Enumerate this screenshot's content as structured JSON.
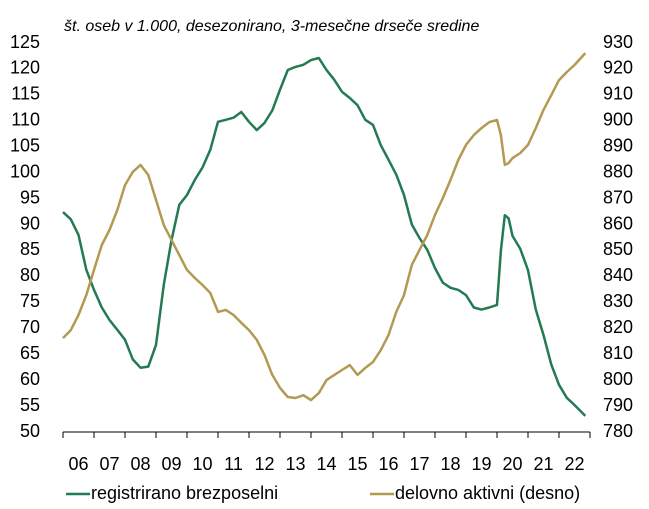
{
  "chart_data": {
    "type": "line",
    "title": "št. oseb v 1.000, desezonirano, 3-mesečne drseče sredine",
    "categories": [
      "06",
      "07",
      "08",
      "09",
      "10",
      "11",
      "12",
      "13",
      "14",
      "15",
      "16",
      "17",
      "18",
      "19",
      "20",
      "21",
      "22"
    ],
    "xlim": [
      2006,
      2023
    ],
    "x": [
      2006.0,
      2006.25,
      2006.5,
      2006.75,
      2007.0,
      2007.25,
      2007.5,
      2007.75,
      2008.0,
      2008.25,
      2008.5,
      2008.75,
      2009.0,
      2009.25,
      2009.5,
      2009.75,
      2010.0,
      2010.25,
      2010.5,
      2010.75,
      2011.0,
      2011.25,
      2011.5,
      2011.75,
      2012.0,
      2012.25,
      2012.5,
      2012.75,
      2013.0,
      2013.25,
      2013.5,
      2013.75,
      2014.0,
      2014.25,
      2014.5,
      2014.75,
      2015.0,
      2015.25,
      2015.5,
      2015.75,
      2016.0,
      2016.25,
      2016.5,
      2016.75,
      2017.0,
      2017.25,
      2017.5,
      2017.75,
      2018.0,
      2018.25,
      2018.5,
      2018.75,
      2019.0,
      2019.25,
      2019.5,
      2019.75,
      2020.0,
      2020.125,
      2020.25,
      2020.375,
      2020.5,
      2020.75,
      2021.0,
      2021.25,
      2021.5,
      2021.75,
      2022.0,
      2022.25,
      2022.5,
      2022.85
    ],
    "ylim": [
      50,
      125
    ],
    "yticks": [
      50,
      55,
      60,
      65,
      70,
      75,
      80,
      85,
      90,
      95,
      100,
      105,
      110,
      115,
      120,
      125
    ],
    "y2lim": [
      780,
      930
    ],
    "y2ticks": [
      780,
      790,
      800,
      810,
      820,
      830,
      840,
      850,
      860,
      870,
      880,
      890,
      900,
      910,
      920,
      930
    ],
    "legend": "bottom",
    "series": [
      {
        "name": "registrirano brezposelni",
        "color": "#237a53",
        "values": [
          92.4,
          91,
          88,
          81.3,
          77.4,
          74,
          71.6,
          69.7,
          67.8,
          64,
          62.4,
          62.6,
          66.8,
          78.4,
          87,
          93.8,
          95.7,
          98.6,
          101,
          104.4,
          109.8,
          110.2,
          110.6,
          111.7,
          109.8,
          108.2,
          109.6,
          112,
          116,
          119.8,
          120.4,
          120.8,
          121.7,
          122.1,
          119.8,
          117.9,
          115.6,
          114.4,
          113,
          110.2,
          109.2,
          105.3,
          102.5,
          99.6,
          95.7,
          90,
          87.4,
          85.1,
          81.6,
          78.8,
          77.8,
          77.4,
          76.4,
          74,
          73.6,
          74,
          74.5,
          85,
          91.8,
          91.2,
          87.8,
          85.3,
          81.2,
          73.6,
          68.7,
          63,
          59.1,
          56.6,
          55.2,
          53.1
        ]
      },
      {
        "name": "delovno aktivni (desno)",
        "color": "#b39a52",
        "axis": "y2",
        "values": [
          816.2,
          819.3,
          825.1,
          832.8,
          842.5,
          852.1,
          857.9,
          865.6,
          875.2,
          880.3,
          883,
          879.1,
          869.5,
          859.8,
          854,
          848.2,
          842.5,
          839.4,
          836.7,
          833.6,
          826.3,
          827.1,
          825.1,
          822.1,
          819.3,
          815.5,
          809.7,
          802,
          797,
          793.5,
          793.1,
          794.2,
          792.3,
          795,
          800,
          802,
          803.9,
          805.8,
          802,
          804.7,
          807,
          811.6,
          817.4,
          826.3,
          832.8,
          844.4,
          850.2,
          856,
          863.7,
          870.2,
          877.2,
          884.9,
          890.7,
          894.5,
          897.2,
          899.5,
          900.3,
          894.5,
          883,
          883.7,
          885.6,
          887.6,
          890.7,
          897.2,
          904.2,
          909.9,
          915.7,
          918.8,
          921.5,
          926.1
        ]
      }
    ]
  }
}
